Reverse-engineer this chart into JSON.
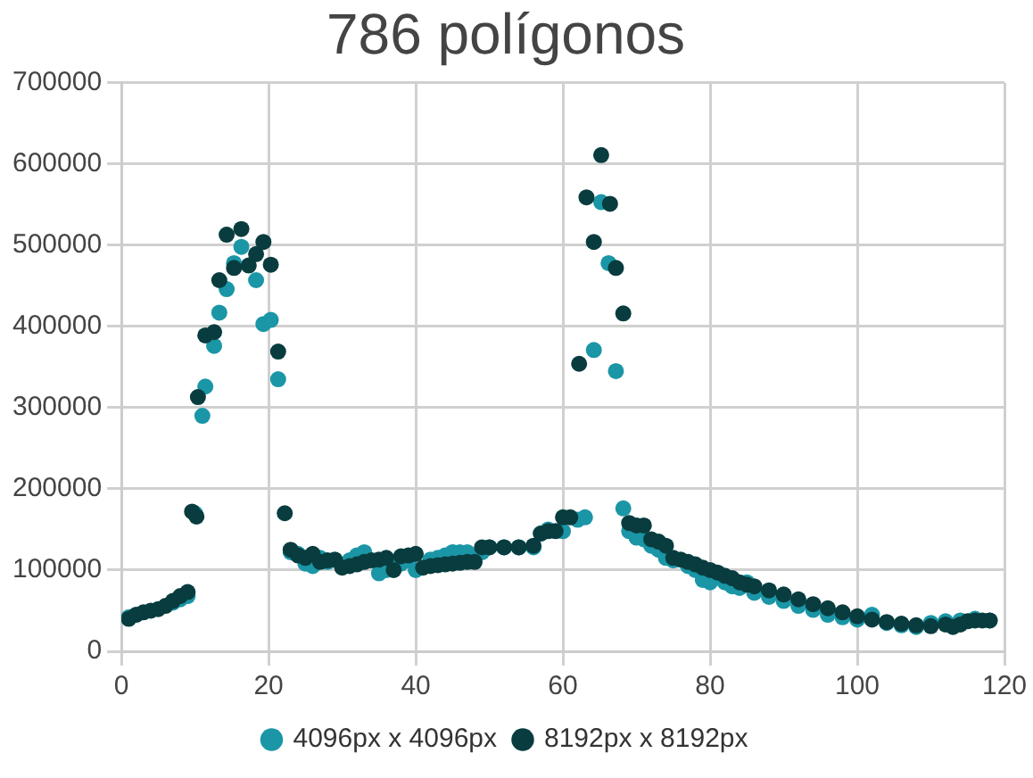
{
  "chart_data": {
    "type": "scatter",
    "title": "786 polígonos",
    "xlim": [
      0,
      120
    ],
    "xticks": [
      0,
      20,
      40,
      60,
      80,
      100,
      120
    ],
    "ylim": [
      0,
      700000
    ],
    "yticks": [
      0,
      100000,
      200000,
      300000,
      400000,
      500000,
      600000,
      700000
    ],
    "grid": true,
    "legend": "bottom",
    "marker": "circle",
    "series": [
      {
        "name": "4096px x 4096px",
        "color": "#1a96a6",
        "x": [
          1,
          2,
          3,
          4,
          5,
          6,
          7,
          8,
          9,
          10,
          11,
          11.4,
          12.6,
          13.3,
          14.3,
          15.3,
          16.3,
          18.3,
          19.3,
          20.3,
          21.3,
          23,
          24,
          25,
          26,
          27,
          28,
          29,
          30,
          31,
          32,
          33,
          34,
          35,
          36,
          37,
          38,
          39,
          40,
          41,
          42,
          43,
          44,
          45,
          46,
          47,
          48,
          49,
          50,
          52,
          54,
          56,
          57,
          58,
          59,
          60,
          61,
          62,
          63,
          64.2,
          65.2,
          66.2,
          67.2,
          68.2,
          69,
          70,
          71,
          72,
          73,
          74,
          75,
          76,
          77,
          78,
          79,
          80,
          81,
          82,
          83,
          84,
          85,
          86,
          88,
          90,
          92,
          94,
          96,
          98,
          100,
          102,
          104,
          106,
          108,
          110,
          112,
          114,
          116,
          118
        ],
        "values": [
          42000,
          null,
          null,
          null,
          null,
          null,
          60000,
          64000,
          68000,
          170000,
          290000,
          326000,
          376000,
          417000,
          446000,
          478000,
          498000,
          457000,
          403000,
          408000,
          335000,
          122000,
          120000,
          108000,
          105000,
          115000,
          110000,
          null,
          null,
          112000,
          118000,
          122000,
          null,
          96000,
          100000,
          null,
          108000,
          112000,
          100000,
          null,
          113000,
          115000,
          118000,
          122000,
          122000,
          122000,
          null,
          122000,
          128000,
          128000,
          128000,
          128000,
          145000,
          150000,
          null,
          148000,
          null,
          162000,
          165000,
          371000,
          553000,
          478000,
          345000,
          176000,
          148000,
          140000,
          138000,
          130000,
          125000,
          115000,
          112000,
          null,
          105000,
          100000,
          88000,
          85000,
          null,
          85000,
          80000,
          78000,
          85000,
          72000,
          67000,
          62000,
          56000,
          51000,
          45000,
          42000,
          39000,
          45000,
          35000,
          32000,
          30000,
          35000,
          37000,
          38000,
          40000,
          38000
        ]
      },
      {
        "name": "8192px x 8192px",
        "color": "#083c3f",
        "x": [
          1,
          2,
          3,
          4,
          5,
          6,
          7,
          8,
          9,
          9.6,
          10.2,
          10.4,
          11.4,
          12.6,
          13.3,
          14.3,
          15.3,
          16.3,
          17.3,
          18.3,
          19.3,
          20.3,
          21.3,
          22.2,
          23,
          24,
          25,
          26,
          27,
          28,
          29,
          30,
          31,
          32,
          33,
          34,
          35,
          36,
          37,
          38,
          39,
          40,
          41,
          42,
          43,
          44,
          45,
          46,
          47,
          48,
          49,
          50,
          52,
          54,
          56,
          57,
          58,
          59,
          60,
          61,
          62.2,
          63.2,
          64.2,
          65.2,
          66.4,
          67.2,
          68.2,
          69,
          70,
          71,
          72,
          73,
          74,
          75,
          76,
          77,
          78,
          79,
          80,
          81,
          82,
          83,
          84,
          85,
          86,
          88,
          90,
          92,
          94,
          96,
          98,
          100,
          102,
          104,
          106,
          108,
          110,
          112,
          113,
          114,
          115,
          116,
          117,
          118
        ],
        "values": [
          40000,
          45000,
          48000,
          50000,
          52000,
          56000,
          62000,
          68000,
          73000,
          172000,
          166000,
          313000,
          389000,
          393000,
          457000,
          513000,
          472000,
          520000,
          475000,
          489000,
          504000,
          476000,
          369000,
          170000,
          125000,
          118000,
          115000,
          120000,
          110000,
          112000,
          113000,
          103000,
          105000,
          107000,
          110000,
          112000,
          113000,
          115000,
          100000,
          117000,
          118000,
          120000,
          103000,
          105000,
          106000,
          107000,
          108000,
          109000,
          110000,
          110000,
          128000,
          128000,
          128000,
          128000,
          130000,
          145000,
          148000,
          148000,
          165000,
          165000,
          354000,
          559000,
          504000,
          611000,
          551000,
          472000,
          416000,
          158000,
          155000,
          155000,
          138000,
          135000,
          130000,
          115000,
          113000,
          110000,
          107000,
          103000,
          100000,
          97000,
          93000,
          90000,
          85000,
          82000,
          80000,
          75000,
          70000,
          64000,
          58000,
          53000,
          48000,
          43000,
          39000,
          36000,
          34000,
          32000,
          31000,
          33000,
          30000,
          33000,
          37000,
          38000,
          38000,
          38000
        ]
      }
    ]
  }
}
